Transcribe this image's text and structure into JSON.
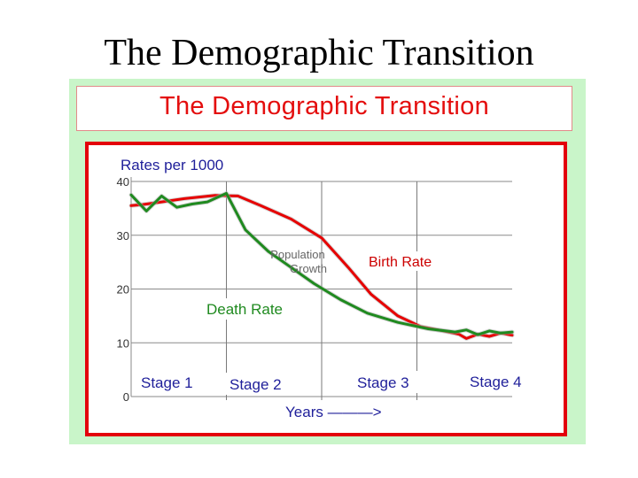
{
  "slide": {
    "title": "The Demographic Transition"
  },
  "colors": {
    "panel_bg": "#c9f5c9",
    "frame_red": "#e3000b",
    "title_red": "#e40e0e",
    "birth_rate": "#e60000",
    "death_rate": "#1f8a1f",
    "ylabel": "#1f1f9a",
    "annotation_red": "#cc0000"
  },
  "chart_data": {
    "type": "line",
    "title": "The Demographic Transition",
    "ylabel": "Rates per 1000",
    "xlabel": "Years ———>",
    "ylim": [
      0,
      40
    ],
    "yticks": [
      0,
      10,
      20,
      30,
      40
    ],
    "ytick_labels": [
      "0",
      "10",
      "20",
      "30",
      "40"
    ],
    "grid": true,
    "stage_boundaries": [
      0.25,
      0.5,
      0.75
    ],
    "stages": [
      "Stage 1",
      "Stage 2",
      "Stage 3",
      "Stage 4"
    ],
    "series": [
      {
        "name": "Birth Rate",
        "x": [
          0,
          0.03,
          0.08,
          0.14,
          0.22,
          0.28,
          0.34,
          0.42,
          0.5,
          0.57,
          0.63,
          0.7,
          0.76,
          0.82,
          0.86,
          0.88,
          0.91,
          0.94,
          0.97,
          1.0
        ],
        "y": [
          35.5,
          35.7,
          36.2,
          36.8,
          37.4,
          37.3,
          35.5,
          33,
          29.5,
          24,
          19,
          15,
          13,
          12.2,
          11.6,
          10.8,
          11.6,
          11.2,
          11.8,
          11.4
        ]
      },
      {
        "name": "Death Rate",
        "x": [
          0,
          0.04,
          0.08,
          0.12,
          0.16,
          0.2,
          0.25,
          0.3,
          0.36,
          0.42,
          0.48,
          0.55,
          0.62,
          0.7,
          0.78,
          0.85,
          0.88,
          0.91,
          0.94,
          0.97,
          1.0
        ],
        "y": [
          37.5,
          34.5,
          37.3,
          35.2,
          35.8,
          36.2,
          37.8,
          31,
          27,
          24,
          21,
          18,
          15.5,
          13.8,
          12.6,
          12,
          12.4,
          11.5,
          12.2,
          11.8,
          12
        ]
      }
    ],
    "annotations": [
      {
        "text": "Population Growth",
        "line1": "Population",
        "line2": "Growth"
      },
      {
        "text": "Birth Rate"
      },
      {
        "text": "Death Rate"
      }
    ]
  }
}
